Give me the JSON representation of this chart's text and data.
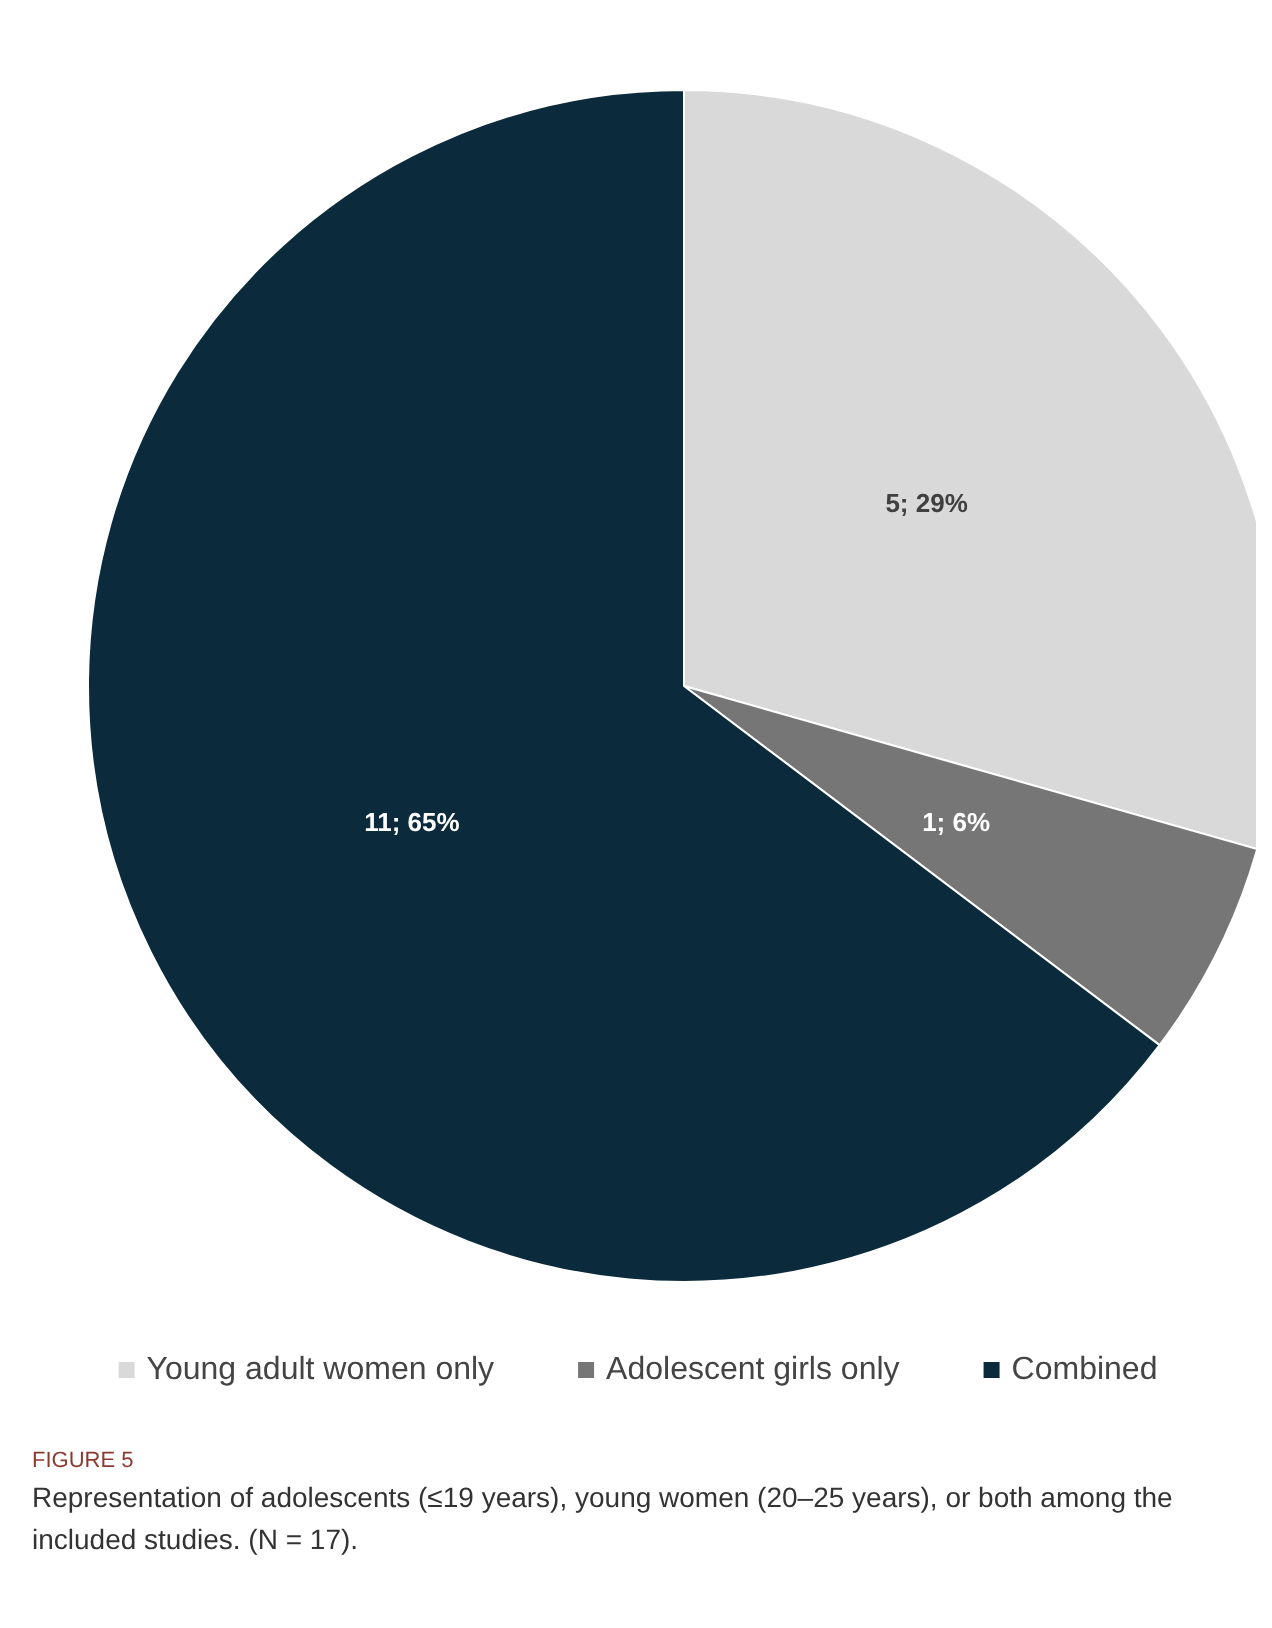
{
  "chart_data": {
    "type": "pie",
    "categories": [
      "Young adult women only",
      "Adolescent girls only",
      "Combined"
    ],
    "values": [
      5,
      1,
      11
    ],
    "value_labels": [
      "5; 29%",
      "1; 6%",
      "11; 65%"
    ],
    "colors": [
      "#d9d9d9",
      "#767676",
      "#0b2b3c"
    ],
    "legend": "bottom",
    "annotations": [
      "FIGURE 5",
      "Representation of adolescents (≤19 years), young women (20–25 years), or both among the included studies. (N = 17)."
    ]
  }
}
